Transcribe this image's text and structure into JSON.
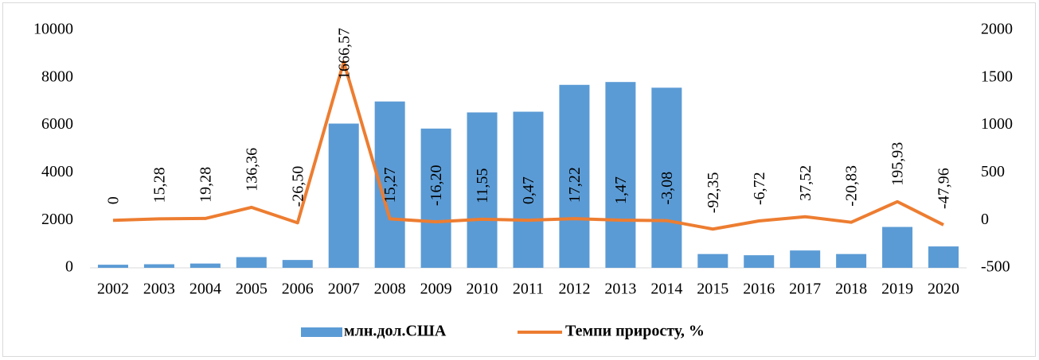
{
  "chart_data": {
    "type": "combo",
    "categories": [
      "2002",
      "2003",
      "2004",
      "2005",
      "2006",
      "2007",
      "2008",
      "2009",
      "2010",
      "2011",
      "2012",
      "2013",
      "2014",
      "2015",
      "2016",
      "2017",
      "2018",
      "2019",
      "2020"
    ],
    "series": [
      {
        "name": "млн.дол.США",
        "type": "bar",
        "color": "#5b9bd5",
        "axis": "y",
        "values": [
          130,
          150,
          180,
          450,
          330,
          6070,
          7000,
          5860,
          6540,
          6570,
          7700,
          7820,
          7580,
          580,
          530,
          730,
          580,
          1720,
          900
        ]
      },
      {
        "name": "Темпи приросту, %",
        "type": "line",
        "color": "#ed7d31",
        "axis": "y2",
        "values": [
          0,
          15.28,
          19.28,
          136.36,
          -26.5,
          1666.57,
          15.27,
          -16.2,
          11.55,
          0.47,
          17.22,
          1.47,
          -3.08,
          -92.35,
          -6.72,
          37.52,
          -20.83,
          195.93,
          -47.96
        ],
        "value_labels": [
          "0",
          "15,28",
          "19,28",
          "136,36",
          "-26,50",
          "1666,57",
          "15,27",
          "-16,20",
          "11,55",
          "0,47",
          "17,22",
          "1,47",
          "-3,08",
          "-92,35",
          "-6,72",
          "37,52",
          "-20,83",
          "195,93",
          "-47,96"
        ]
      }
    ],
    "ylim": [
      0,
      10000
    ],
    "yticks": [
      0,
      2000,
      4000,
      6000,
      8000,
      10000
    ],
    "y2lim": [
      -500,
      2000
    ],
    "y2ticks": [
      -500,
      0,
      500,
      1000,
      1500,
      2000
    ],
    "grid": false,
    "legend": "bottom"
  }
}
